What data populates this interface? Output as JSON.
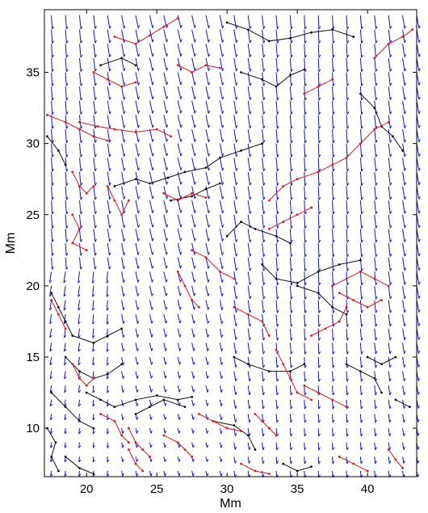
{
  "chart_data": {
    "type": "scatter",
    "title": "",
    "xlabel": "Mm",
    "ylabel": "Mm",
    "xlim": [
      17.0,
      43.5
    ],
    "ylim": [
      6.6,
      39.4
    ],
    "xticks": [
      20,
      25,
      30,
      35,
      40
    ],
    "yticks": [
      10,
      15,
      20,
      25,
      30,
      35
    ],
    "x_tick_labels": [
      "20",
      "25",
      "30",
      "35",
      "40"
    ],
    "y_tick_labels": [
      "10",
      "15",
      "20",
      "25",
      "30",
      "35"
    ],
    "grid": false,
    "legend": "none",
    "colors": {
      "vectors": "#1010e6",
      "black_tracks": "#111111",
      "red_tracks": "#e61414",
      "axes": "#000000"
    },
    "vector_field": {
      "description_of_glyph": "arrow",
      "x_start": 17.5,
      "x_step": 1.0,
      "x_count": 27,
      "y_start": 7.0,
      "y_step": 1.0,
      "y_count": 33,
      "typical_direction": "down-left"
    },
    "series": [
      {
        "color": "black",
        "tracks": [
          [
            [
              30.0,
              38.5
            ],
            [
              31.5,
              38.0
            ],
            [
              33.0,
              37.2
            ],
            [
              34.5,
              37.4
            ],
            [
              36.0,
              37.8
            ],
            [
              37.5,
              38.0
            ],
            [
              39.0,
              37.5
            ]
          ],
          [
            [
              31.0,
              35.0
            ],
            [
              32.5,
              34.5
            ],
            [
              33.5,
              34.0
            ],
            [
              34.5,
              34.8
            ],
            [
              35.5,
              35.2
            ]
          ],
          [
            [
              39.5,
              33.5
            ],
            [
              40.5,
              32.5
            ],
            [
              41.0,
              31.2
            ],
            [
              41.8,
              30.5
            ],
            [
              42.5,
              29.5
            ]
          ],
          [
            [
              21.0,
              35.5
            ],
            [
              22.5,
              36.0
            ],
            [
              23.5,
              35.5
            ]
          ],
          [
            [
              17.2,
              30.5
            ],
            [
              18.0,
              29.5
            ],
            [
              18.5,
              28.5
            ]
          ],
          [
            [
              22.0,
              27.0
            ],
            [
              23.5,
              27.5
            ],
            [
              24.5,
              27.2
            ],
            [
              25.8,
              27.6
            ],
            [
              27.0,
              28.0
            ],
            [
              28.5,
              28.3
            ],
            [
              29.5,
              29.0
            ],
            [
              31.0,
              29.5
            ],
            [
              32.5,
              30.0
            ]
          ],
          [
            [
              26.0,
              26.0
            ],
            [
              27.5,
              26.3
            ],
            [
              28.5,
              26.8
            ],
            [
              29.5,
              27.2
            ]
          ],
          [
            [
              30.0,
              23.5
            ],
            [
              31.0,
              24.5
            ],
            [
              32.0,
              24.0
            ],
            [
              33.5,
              23.5
            ],
            [
              34.5,
              23.0
            ]
          ],
          [
            [
              32.5,
              21.5
            ],
            [
              33.5,
              20.5
            ],
            [
              35.0,
              20.2
            ],
            [
              36.5,
              21.0
            ],
            [
              38.0,
              21.5
            ],
            [
              39.5,
              21.8
            ]
          ],
          [
            [
              17.5,
              19.5
            ],
            [
              18.0,
              18.5
            ],
            [
              18.5,
              17.5
            ],
            [
              19.0,
              16.5
            ],
            [
              20.5,
              16.0
            ],
            [
              21.5,
              16.5
            ],
            [
              22.5,
              17.0
            ]
          ],
          [
            [
              18.5,
              15.0
            ],
            [
              19.5,
              14.0
            ],
            [
              20.5,
              13.5
            ],
            [
              21.5,
              13.8
            ],
            [
              22.5,
              14.5
            ]
          ],
          [
            [
              17.5,
              12.5
            ],
            [
              18.5,
              11.5
            ],
            [
              19.5,
              10.5
            ],
            [
              20.5,
              10.0
            ]
          ],
          [
            [
              20.0,
              12.5
            ],
            [
              21.0,
              12.0
            ],
            [
              22.0,
              11.5
            ],
            [
              23.5,
              12.0
            ],
            [
              25.0,
              12.3
            ],
            [
              26.5,
              12.0
            ],
            [
              27.5,
              12.2
            ]
          ],
          [
            [
              23.5,
              11.0
            ],
            [
              24.5,
              11.5
            ],
            [
              25.5,
              12.0
            ],
            [
              27.0,
              11.5
            ]
          ],
          [
            [
              29.0,
              10.5
            ],
            [
              30.5,
              10.2
            ],
            [
              31.5,
              9.5
            ],
            [
              32.0,
              8.5
            ]
          ],
          [
            [
              17.2,
              10.0
            ],
            [
              17.8,
              9.0
            ],
            [
              17.5,
              8.0
            ],
            [
              18.0,
              7.0
            ]
          ],
          [
            [
              30.5,
              15.0
            ],
            [
              31.5,
              14.5
            ],
            [
              33.0,
              14.0
            ],
            [
              34.5,
              14.0
            ],
            [
              35.5,
              14.5
            ]
          ],
          [
            [
              35.0,
              20.0
            ],
            [
              36.5,
              19.5
            ],
            [
              37.5,
              18.5
            ],
            [
              38.5,
              18.0
            ]
          ],
          [
            [
              38.5,
              14.5
            ],
            [
              39.5,
              14.0
            ],
            [
              40.5,
              13.5
            ],
            [
              41.0,
              12.5
            ]
          ],
          [
            [
              42.0,
              12.0
            ],
            [
              43.0,
              11.5
            ]
          ],
          [
            [
              34.0,
              7.5
            ],
            [
              35.0,
              7.0
            ],
            [
              36.0,
              7.3
            ]
          ],
          [
            [
              40.0,
              15.0
            ],
            [
              41.0,
              14.5
            ],
            [
              42.0,
              15.0
            ]
          ],
          [
            [
              18.5,
              8.0
            ],
            [
              19.5,
              7.2
            ],
            [
              20.5,
              6.8
            ]
          ]
        ]
      },
      {
        "color": "red",
        "tracks": [
          [
            [
              22.0,
              37.5
            ],
            [
              23.5,
              37.0
            ],
            [
              24.5,
              37.6
            ],
            [
              25.5,
              38.2
            ],
            [
              26.5,
              38.8
            ]
          ],
          [
            [
              20.5,
              35.0
            ],
            [
              21.5,
              34.5
            ],
            [
              22.5,
              34.0
            ],
            [
              23.5,
              34.3
            ]
          ],
          [
            [
              26.5,
              35.5
            ],
            [
              27.5,
              35.0
            ],
            [
              28.5,
              35.5
            ],
            [
              29.5,
              35.3
            ]
          ],
          [
            [
              40.5,
              36.0
            ],
            [
              41.5,
              37.0
            ],
            [
              42.5,
              37.5
            ],
            [
              43.2,
              38.0
            ]
          ],
          [
            [
              35.5,
              33.5
            ],
            [
              36.5,
              34.0
            ],
            [
              37.5,
              34.5
            ]
          ],
          [
            [
              17.2,
              32.0
            ],
            [
              18.5,
              31.5
            ],
            [
              19.5,
              31.0
            ],
            [
              20.5,
              30.5
            ],
            [
              21.5,
              30.2
            ]
          ],
          [
            [
              19.5,
              31.5
            ],
            [
              20.8,
              31.2
            ],
            [
              22.0,
              31.0
            ],
            [
              23.5,
              30.8
            ],
            [
              25.0,
              31.0
            ],
            [
              26.0,
              30.5
            ]
          ],
          [
            [
              19.0,
              28.0
            ],
            [
              19.5,
              27.0
            ],
            [
              20.0,
              26.5
            ],
            [
              20.5,
              27.0
            ]
          ],
          [
            [
              21.5,
              27.0
            ],
            [
              22.0,
              26.0
            ],
            [
              22.5,
              25.0
            ],
            [
              23.0,
              26.0
            ]
          ],
          [
            [
              19.0,
              25.0
            ],
            [
              19.5,
              24.0
            ],
            [
              19.0,
              23.0
            ],
            [
              20.0,
              22.5
            ]
          ],
          [
            [
              25.5,
              26.5
            ],
            [
              26.5,
              26.0
            ],
            [
              27.5,
              26.5
            ],
            [
              28.5,
              26.2
            ]
          ],
          [
            [
              33.0,
              26.0
            ],
            [
              34.0,
              27.0
            ],
            [
              35.0,
              27.5
            ],
            [
              36.5,
              28.0
            ],
            [
              37.5,
              28.5
            ],
            [
              38.5,
              29.0
            ],
            [
              39.5,
              30.0
            ],
            [
              40.5,
              31.0
            ],
            [
              41.5,
              31.5
            ]
          ],
          [
            [
              33.0,
              24.0
            ],
            [
              34.0,
              24.5
            ],
            [
              35.0,
              25.0
            ],
            [
              36.0,
              25.5
            ]
          ],
          [
            [
              27.5,
              22.5
            ],
            [
              28.5,
              22.0
            ],
            [
              29.5,
              21.0
            ],
            [
              30.5,
              20.5
            ]
          ],
          [
            [
              26.5,
              21.0
            ],
            [
              27.0,
              20.0
            ],
            [
              27.5,
              19.0
            ],
            [
              28.0,
              18.5
            ]
          ],
          [
            [
              30.5,
              18.5
            ],
            [
              31.5,
              18.0
            ],
            [
              32.5,
              17.5
            ],
            [
              33.0,
              16.5
            ]
          ],
          [
            [
              33.5,
              15.5
            ],
            [
              34.0,
              14.5
            ],
            [
              34.5,
              13.5
            ],
            [
              35.0,
              12.5
            ],
            [
              36.0,
              12.0
            ]
          ],
          [
            [
              36.0,
              16.5
            ],
            [
              37.0,
              17.0
            ],
            [
              38.0,
              17.5
            ],
            [
              38.5,
              18.5
            ]
          ],
          [
            [
              37.5,
              20.0
            ],
            [
              38.5,
              20.5
            ],
            [
              39.5,
              21.0
            ],
            [
              40.5,
              20.5
            ],
            [
              41.5,
              20.0
            ]
          ],
          [
            [
              38.0,
              19.5
            ],
            [
              39.0,
              19.0
            ],
            [
              40.0,
              18.5
            ],
            [
              41.0,
              19.0
            ]
          ],
          [
            [
              17.5,
              19.0
            ],
            [
              18.0,
              18.0
            ],
            [
              18.5,
              17.0
            ]
          ],
          [
            [
              19.0,
              14.5
            ],
            [
              19.5,
              13.5
            ],
            [
              20.0,
              13.0
            ],
            [
              20.5,
              13.5
            ]
          ],
          [
            [
              21.0,
              11.0
            ],
            [
              22.0,
              10.5
            ],
            [
              22.5,
              9.5
            ],
            [
              23.0,
              9.0
            ]
          ],
          [
            [
              23.0,
              10.0
            ],
            [
              23.5,
              9.0
            ],
            [
              24.0,
              8.5
            ],
            [
              24.5,
              8.0
            ]
          ],
          [
            [
              25.5,
              9.5
            ],
            [
              26.5,
              9.0
            ],
            [
              27.0,
              8.5
            ],
            [
              27.5,
              8.0
            ]
          ],
          [
            [
              28.0,
              11.0
            ],
            [
              29.0,
              10.5
            ],
            [
              30.0,
              10.0
            ],
            [
              31.0,
              9.8
            ]
          ],
          [
            [
              32.0,
              11.0
            ],
            [
              32.5,
              10.5
            ],
            [
              33.0,
              10.0
            ],
            [
              33.5,
              9.5
            ]
          ],
          [
            [
              35.5,
              13.0
            ],
            [
              36.5,
              12.5
            ],
            [
              37.5,
              12.0
            ],
            [
              38.5,
              11.5
            ]
          ],
          [
            [
              38.0,
              8.0
            ],
            [
              39.0,
              7.5
            ],
            [
              40.0,
              7.0
            ]
          ],
          [
            [
              41.5,
              8.5
            ],
            [
              42.0,
              7.8
            ],
            [
              42.5,
              7.2
            ]
          ],
          [
            [
              23.0,
              8.5
            ],
            [
              23.5,
              7.5
            ],
            [
              24.0,
              7.0
            ]
          ],
          [
            [
              31.0,
              7.5
            ],
            [
              32.0,
              7.0
            ],
            [
              33.0,
              6.8
            ]
          ]
        ]
      }
    ]
  }
}
